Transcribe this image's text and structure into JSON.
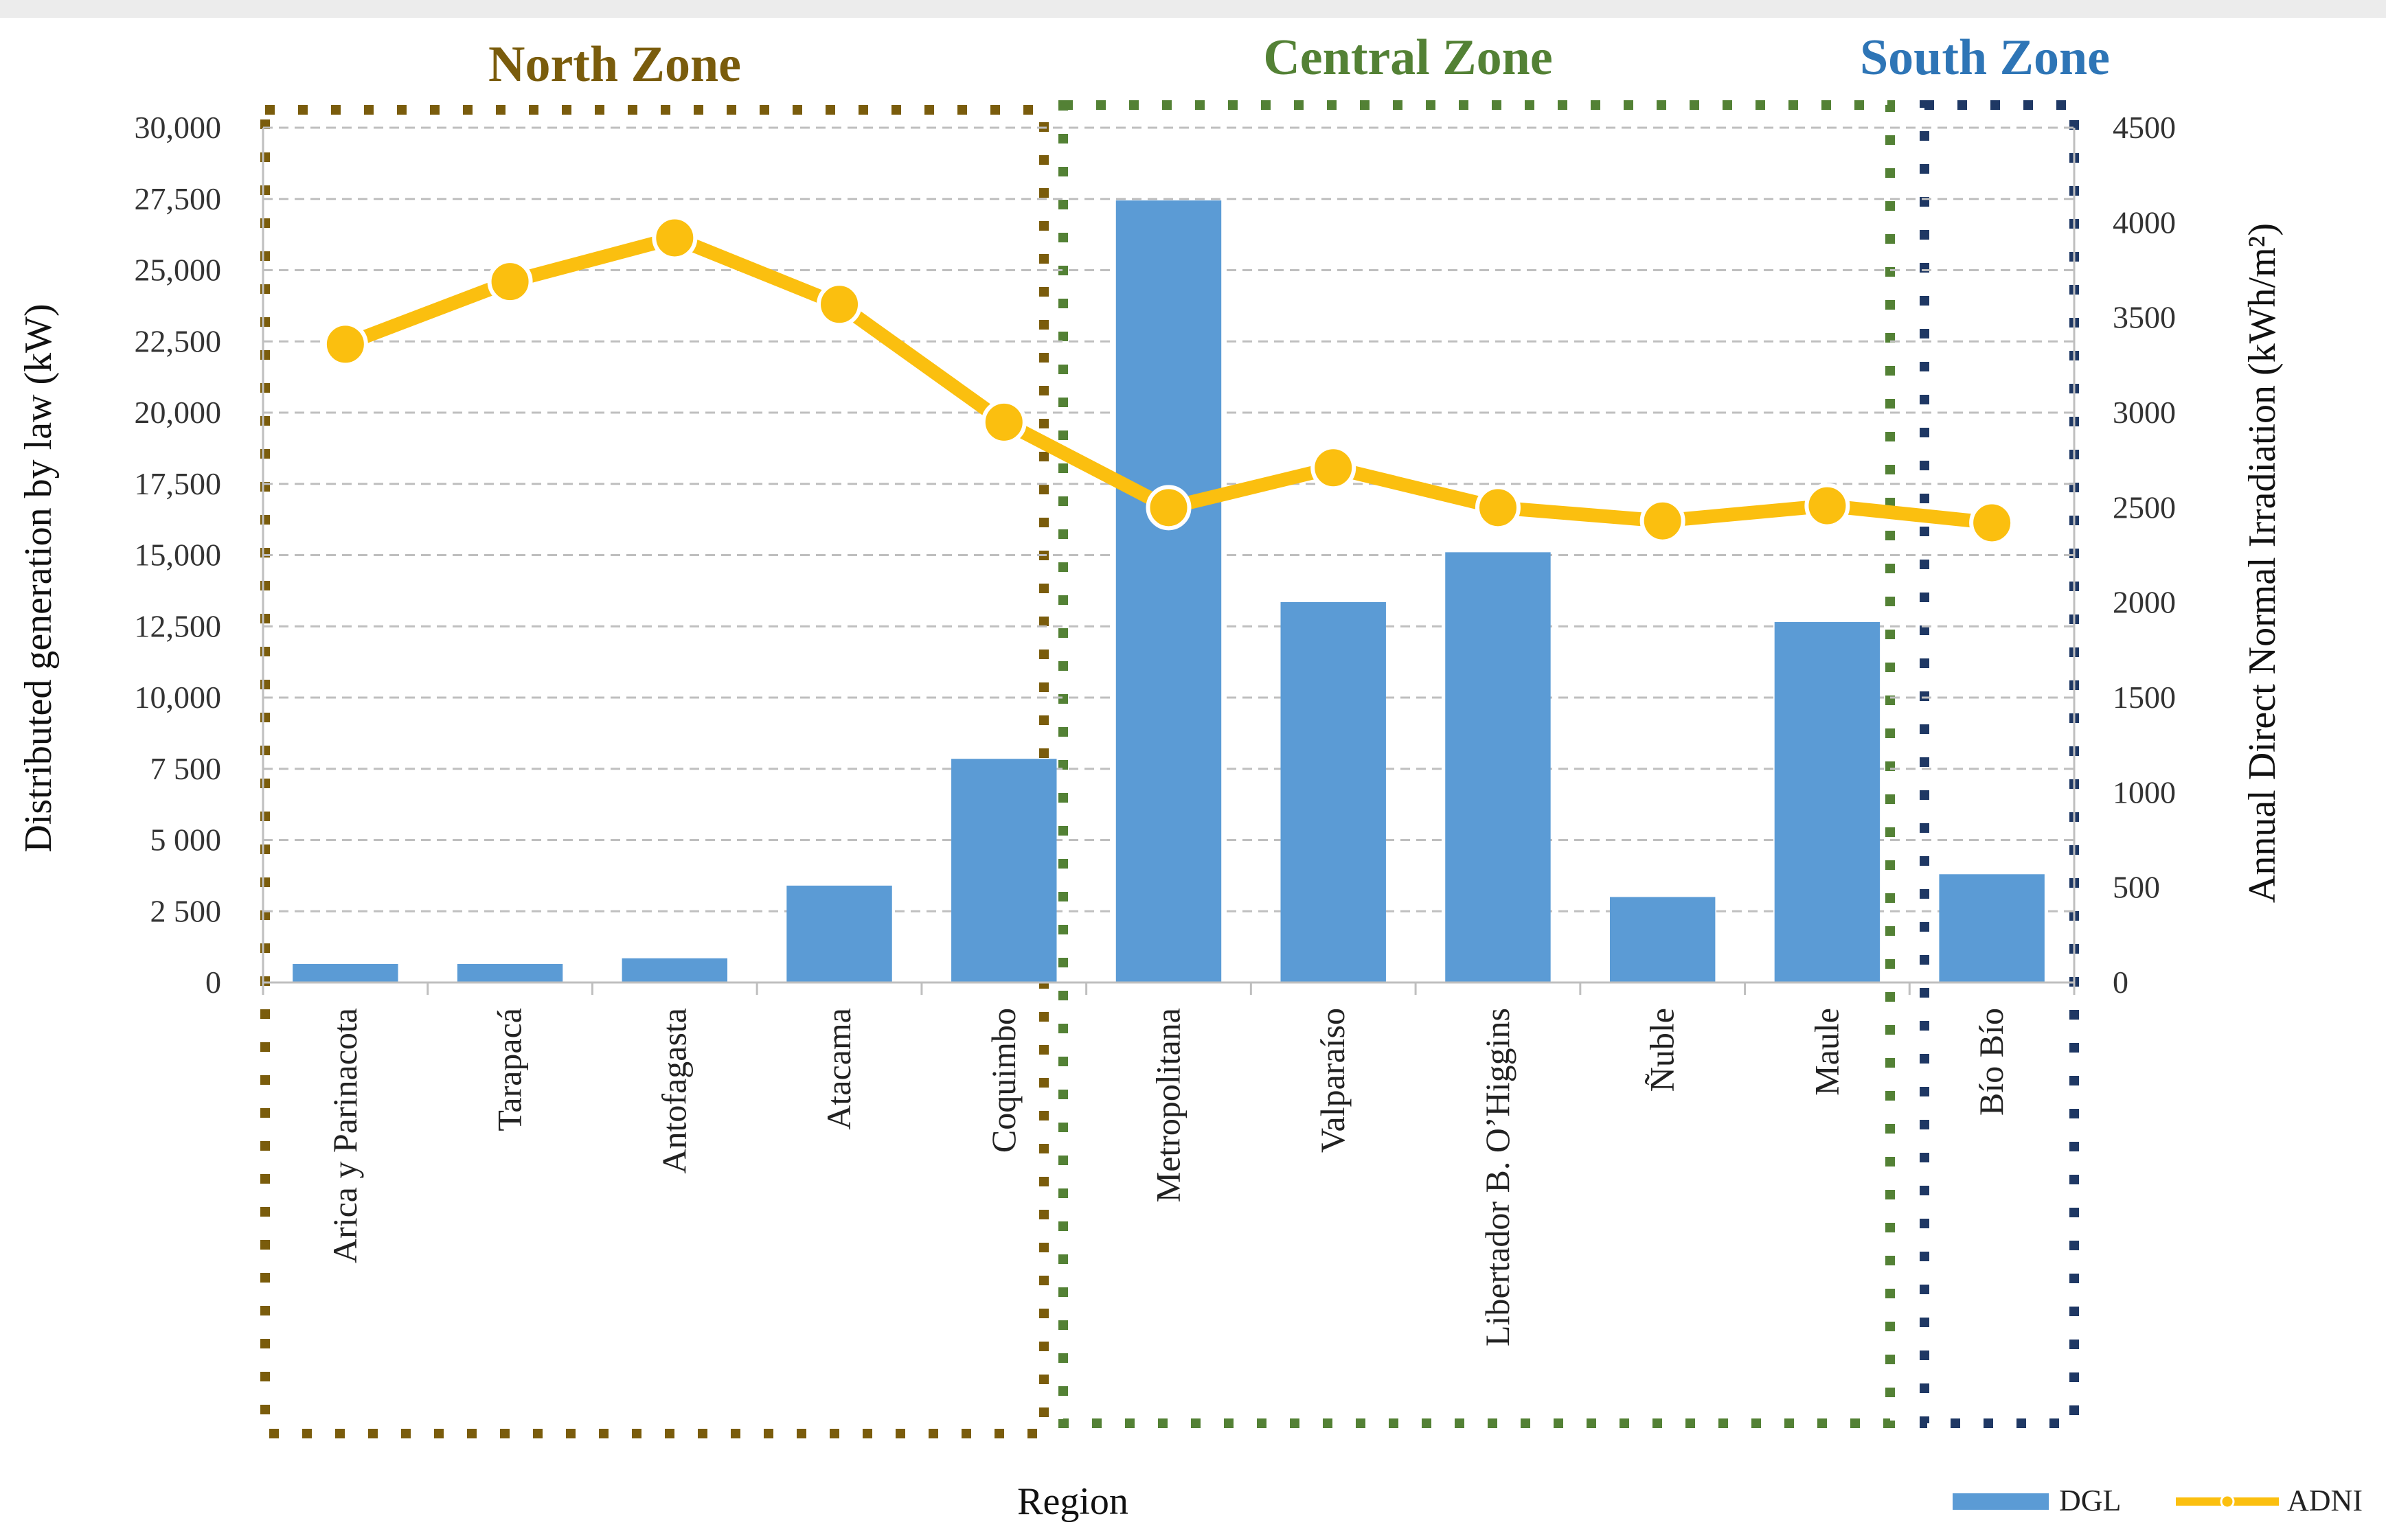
{
  "chart_data": {
    "type": "bar",
    "title": "",
    "xlabel": "Region",
    "ylabel": "Distributed generation by law (kW)",
    "y2label": "Annual Direct Normal  Irradiation (kWh/m²)",
    "ylim": [
      0,
      30000
    ],
    "y2lim": [
      0,
      4500
    ],
    "grid": true,
    "legend_position": "bottom-right",
    "categories": [
      "Arica y Parinacota",
      "Tarapacá",
      "Antofagasta",
      "Atacama",
      "Coquimbo",
      "Metropolitana",
      "Valparaíso",
      "Libertador B. O’Higgins",
      "Ñuble",
      "Maule",
      "Bío Bío"
    ],
    "y_ticks": [
      0,
      2500,
      5000,
      7500,
      10000,
      12500,
      15000,
      17500,
      20000,
      22500,
      25000,
      27500,
      30000
    ],
    "y_tick_labels": [
      "0",
      "2 500",
      "5 000",
      "7 500",
      "10,000",
      "12,500",
      "15,000",
      "17,500",
      "20,000",
      "22,500",
      "25,000",
      "27,500",
      "30,000"
    ],
    "y2_ticks": [
      0,
      500,
      1000,
      1500,
      2000,
      2500,
      3000,
      3500,
      4000,
      4500
    ],
    "y2_tick_labels": [
      "0",
      "500",
      "1000",
      "1500",
      "2000",
      "2500",
      "3000",
      "3500",
      "4000",
      "4500"
    ],
    "series": [
      {
        "name": "DGL",
        "type": "bar",
        "axis": "left",
        "color": "#5b9bd5",
        "values": [
          650,
          650,
          850,
          3400,
          7850,
          27450,
          13350,
          15100,
          3000,
          12650,
          3800
        ]
      },
      {
        "name": "ADNI",
        "type": "line",
        "axis": "right",
        "color": "#fbbf0f",
        "values": [
          3360,
          3690,
          3920,
          3570,
          2950,
          2500,
          2710,
          2500,
          2430,
          2510,
          2420
        ]
      }
    ],
    "zones": [
      {
        "name": "North Zone",
        "color": "#7a5c0c",
        "from": 0,
        "to": 4
      },
      {
        "name": "Central Zone",
        "color": "#538135",
        "from": 5,
        "to": 9
      },
      {
        "name": "South Zone",
        "color": "#1f3864",
        "label_color": "#2e75b6",
        "from": 10,
        "to": 10
      }
    ]
  }
}
